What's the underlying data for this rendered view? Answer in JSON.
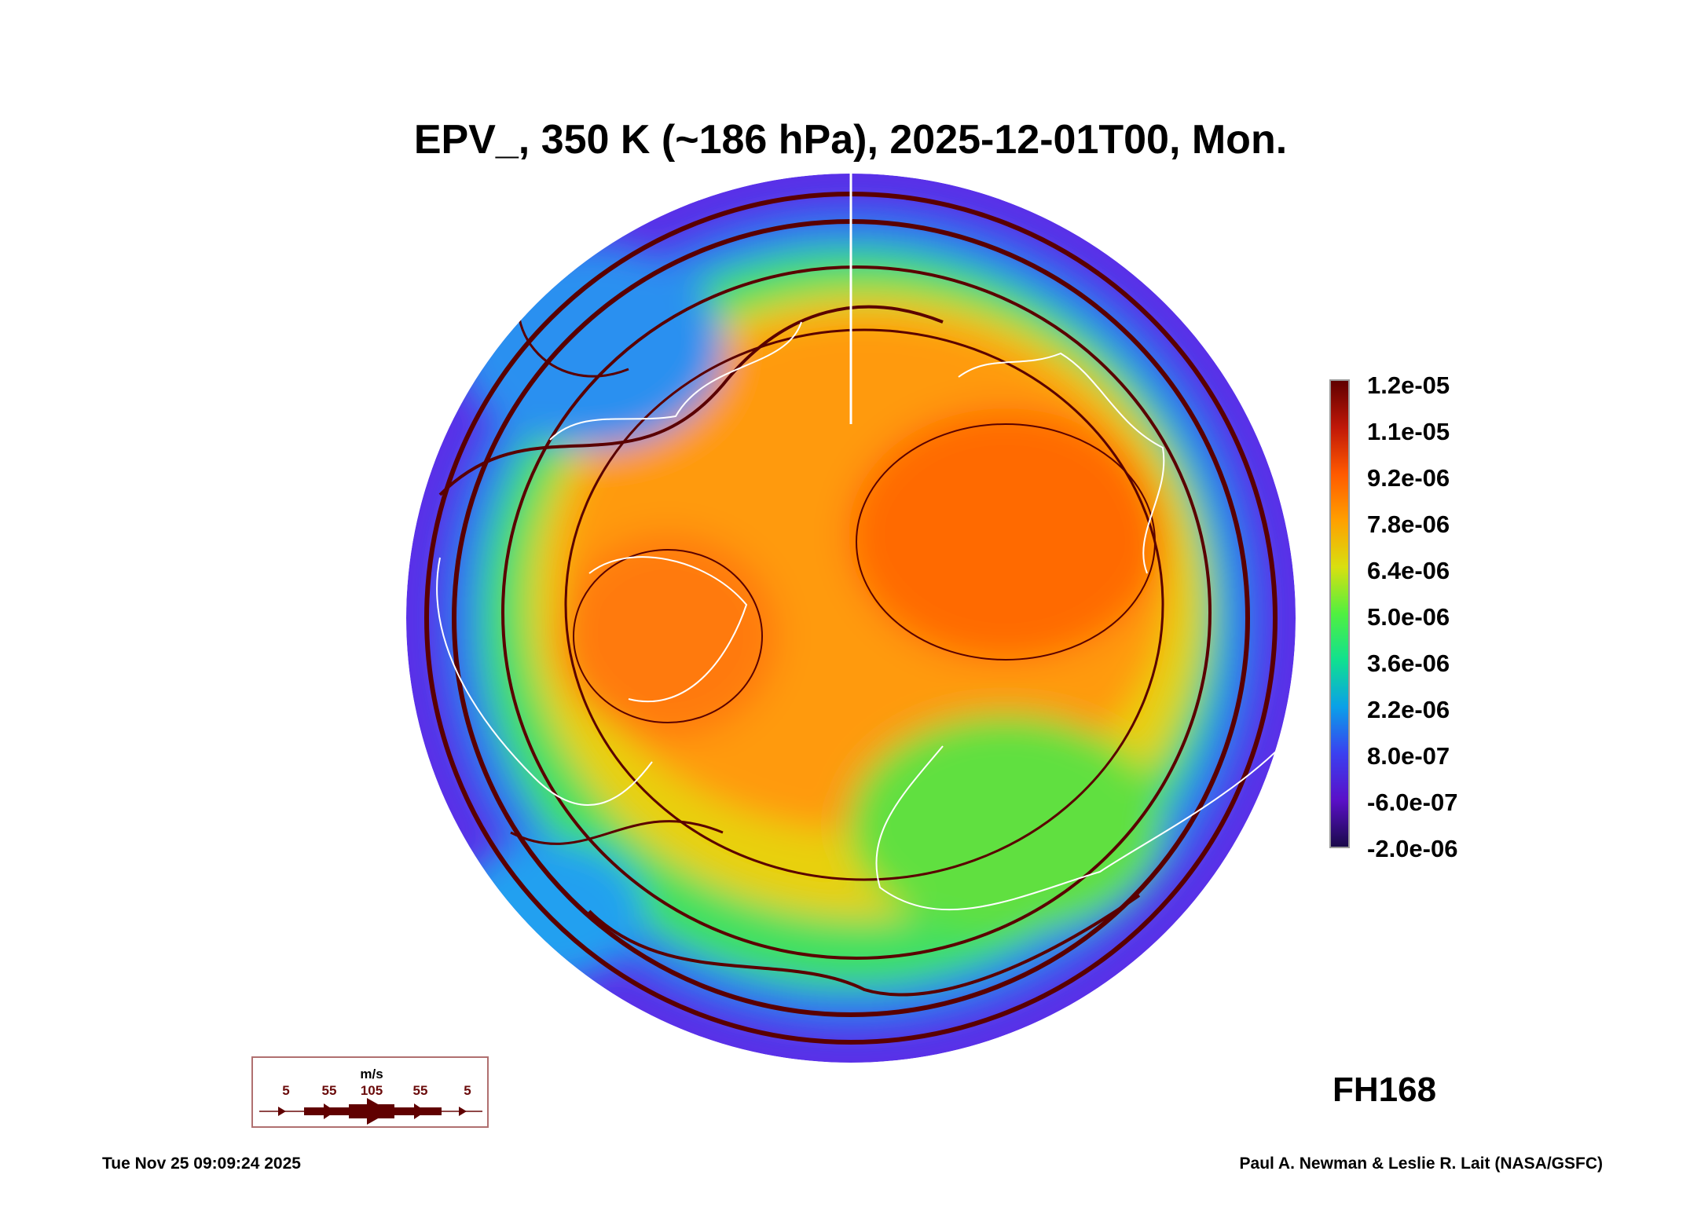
{
  "chart_data": {
    "type": "heatmap",
    "title": "EPV_, 350 K (~186 hPa), 2025-12-01T00, Mon.",
    "projection": "north polar stereographic",
    "colorbar": {
      "ticks": [
        "1.2e-05",
        "1.1e-05",
        "9.2e-06",
        "7.8e-06",
        "6.4e-06",
        "5.0e-06",
        "3.6e-06",
        "2.2e-06",
        "8.0e-07",
        "-6.0e-07",
        "-2.0e-06"
      ],
      "range": [
        -2e-06,
        1.2e-05
      ]
    },
    "wind_legend": {
      "units": "m/s",
      "labels": [
        "5",
        "55",
        "105",
        "55",
        "5"
      ]
    },
    "forecast_hour": "FH168",
    "colors": {
      "streamline": "#5a0000",
      "coast": "#ffffff"
    }
  },
  "footer": {
    "timestamp": "Tue Nov 25 09:09:24 2025",
    "credit": "Paul A. Newman & Leslie R. Lait (NASA/GSFC)"
  }
}
